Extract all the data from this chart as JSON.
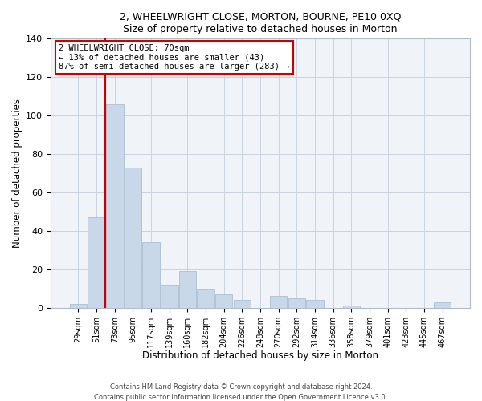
{
  "title1": "2, WHEELWRIGHT CLOSE, MORTON, BOURNE, PE10 0XQ",
  "title2": "Size of property relative to detached houses in Morton",
  "xlabel": "Distribution of detached houses by size in Morton",
  "ylabel": "Number of detached properties",
  "bar_color": "#c8d8e8",
  "bar_edge_color": "#a0b8cc",
  "categories": [
    "29sqm",
    "51sqm",
    "73sqm",
    "95sqm",
    "117sqm",
    "139sqm",
    "160sqm",
    "182sqm",
    "204sqm",
    "226sqm",
    "248sqm",
    "270sqm",
    "292sqm",
    "314sqm",
    "336sqm",
    "358sqm",
    "379sqm",
    "401sqm",
    "423sqm",
    "445sqm",
    "467sqm"
  ],
  "values": [
    2,
    47,
    106,
    73,
    34,
    12,
    19,
    10,
    7,
    4,
    0,
    6,
    5,
    4,
    0,
    1,
    0,
    0,
    0,
    0,
    3
  ],
  "ylim": [
    0,
    140
  ],
  "yticks": [
    0,
    20,
    40,
    60,
    80,
    100,
    120,
    140
  ],
  "vline_color": "#cc0000",
  "annotation_title": "2 WHEELWRIGHT CLOSE: 70sqm",
  "annotation_line1": "← 13% of detached houses are smaller (43)",
  "annotation_line2": "87% of semi-detached houses are larger (283) →",
  "annotation_box_color": "#ffffff",
  "annotation_box_edge": "#cc0000",
  "footer1": "Contains HM Land Registry data © Crown copyright and database right 2024.",
  "footer2": "Contains public sector information licensed under the Open Government Licence v3.0."
}
